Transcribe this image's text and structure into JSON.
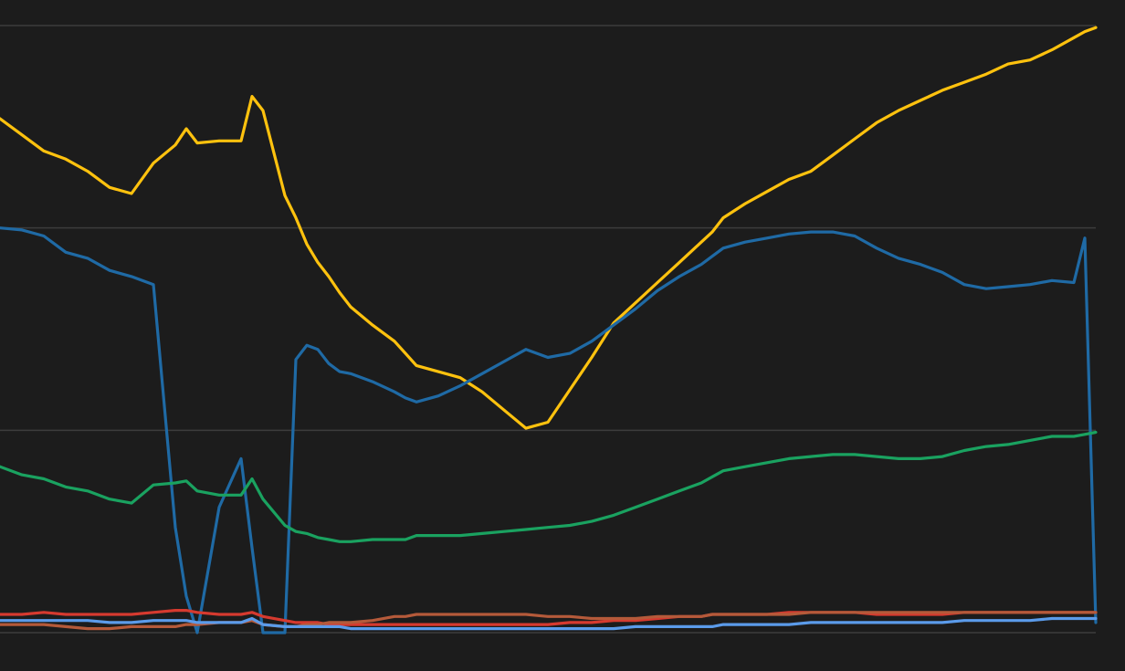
{
  "chart_data": {
    "type": "line",
    "title": "",
    "xlabel": "",
    "ylabel": "",
    "x_tick_labels": [],
    "ylim": [
      0,
      3
    ],
    "grid": true,
    "gridlines_y": [
      0,
      1,
      2,
      3
    ],
    "x": [
      0,
      2,
      4,
      6,
      8,
      10,
      12,
      14,
      16,
      17,
      18,
      20,
      22,
      23,
      24,
      26,
      27,
      28,
      29,
      30,
      31,
      32,
      34,
      36,
      37,
      38,
      40,
      42,
      44,
      46,
      48,
      50,
      52,
      54,
      56,
      58,
      60,
      62,
      64,
      65,
      66,
      68,
      70,
      72,
      74,
      76,
      78,
      80,
      82,
      84,
      86,
      88,
      90,
      92,
      94,
      96,
      98,
      99,
      100
    ],
    "series": [
      {
        "color": "#ffc20e",
        "values": [
          2.54,
          2.46,
          2.38,
          2.34,
          2.28,
          2.2,
          2.17,
          2.32,
          2.41,
          2.49,
          2.42,
          2.43,
          2.43,
          2.65,
          2.58,
          2.16,
          2.05,
          1.92,
          1.83,
          1.76,
          1.68,
          1.61,
          1.52,
          1.44,
          1.38,
          1.32,
          1.29,
          1.26,
          1.19,
          1.1,
          1.01,
          1.04,
          1.2,
          1.36,
          1.53,
          1.63,
          1.73,
          1.83,
          1.93,
          1.98,
          2.05,
          2.12,
          2.18,
          2.24,
          2.28,
          2.36,
          2.44,
          2.52,
          2.58,
          2.63,
          2.68,
          2.72,
          2.76,
          2.81,
          2.83,
          2.88,
          2.94,
          2.97,
          2.99
        ]
      },
      {
        "color": "#1f6aa5",
        "values": [
          2.0,
          1.99,
          1.96,
          1.88,
          1.85,
          1.79,
          1.76,
          1.72,
          0.52,
          0.18,
          0.0,
          0.62,
          0.86,
          0.42,
          0.0,
          0.0,
          1.35,
          1.42,
          1.4,
          1.33,
          1.29,
          1.28,
          1.24,
          1.19,
          1.16,
          1.14,
          1.17,
          1.22,
          1.28,
          1.34,
          1.4,
          1.36,
          1.38,
          1.44,
          1.52,
          1.6,
          1.69,
          1.76,
          1.82,
          1.86,
          1.9,
          1.93,
          1.95,
          1.97,
          1.98,
          1.98,
          1.96,
          1.9,
          1.85,
          1.82,
          1.78,
          1.72,
          1.7,
          1.71,
          1.72,
          1.74,
          1.73,
          1.95,
          0.05
        ]
      },
      {
        "color": "#1aa260",
        "values": [
          0.82,
          0.78,
          0.76,
          0.72,
          0.7,
          0.66,
          0.64,
          0.73,
          0.74,
          0.75,
          0.7,
          0.68,
          0.68,
          0.76,
          0.66,
          0.53,
          0.5,
          0.49,
          0.47,
          0.46,
          0.45,
          0.45,
          0.46,
          0.46,
          0.46,
          0.48,
          0.48,
          0.48,
          0.49,
          0.5,
          0.51,
          0.52,
          0.53,
          0.55,
          0.58,
          0.62,
          0.66,
          0.7,
          0.74,
          0.77,
          0.8,
          0.82,
          0.84,
          0.86,
          0.87,
          0.88,
          0.88,
          0.87,
          0.86,
          0.86,
          0.87,
          0.9,
          0.92,
          0.93,
          0.95,
          0.97,
          0.97,
          0.98,
          0.99
        ]
      },
      {
        "color": "#d63a2f",
        "values": [
          0.09,
          0.09,
          0.1,
          0.09,
          0.09,
          0.09,
          0.09,
          0.1,
          0.11,
          0.11,
          0.1,
          0.09,
          0.09,
          0.1,
          0.08,
          0.06,
          0.05,
          0.05,
          0.05,
          0.04,
          0.04,
          0.04,
          0.04,
          0.04,
          0.04,
          0.04,
          0.04,
          0.04,
          0.04,
          0.04,
          0.04,
          0.04,
          0.05,
          0.05,
          0.06,
          0.06,
          0.07,
          0.08,
          0.08,
          0.09,
          0.09,
          0.09,
          0.09,
          0.1,
          0.1,
          0.1,
          0.1,
          0.09,
          0.09,
          0.09,
          0.09,
          0.1,
          0.1,
          0.1,
          0.1,
          0.1,
          0.1,
          0.1,
          0.1
        ]
      },
      {
        "color": "#b55a3a",
        "values": [
          0.04,
          0.04,
          0.04,
          0.03,
          0.02,
          0.02,
          0.03,
          0.03,
          0.03,
          0.04,
          0.04,
          0.05,
          0.05,
          0.06,
          0.04,
          0.03,
          0.03,
          0.04,
          0.04,
          0.05,
          0.05,
          0.05,
          0.06,
          0.08,
          0.08,
          0.09,
          0.09,
          0.09,
          0.09,
          0.09,
          0.09,
          0.08,
          0.08,
          0.07,
          0.07,
          0.07,
          0.08,
          0.08,
          0.08,
          0.09,
          0.09,
          0.09,
          0.09,
          0.09,
          0.1,
          0.1,
          0.1,
          0.1,
          0.1,
          0.1,
          0.1,
          0.1,
          0.1,
          0.1,
          0.1,
          0.1,
          0.1,
          0.1,
          0.1
        ]
      },
      {
        "color": "#5b9bea",
        "values": [
          0.06,
          0.06,
          0.06,
          0.06,
          0.06,
          0.05,
          0.05,
          0.06,
          0.06,
          0.06,
          0.05,
          0.05,
          0.05,
          0.07,
          0.04,
          0.03,
          0.03,
          0.03,
          0.03,
          0.03,
          0.03,
          0.02,
          0.02,
          0.02,
          0.02,
          0.02,
          0.02,
          0.02,
          0.02,
          0.02,
          0.02,
          0.02,
          0.02,
          0.02,
          0.02,
          0.03,
          0.03,
          0.03,
          0.03,
          0.03,
          0.04,
          0.04,
          0.04,
          0.04,
          0.05,
          0.05,
          0.05,
          0.05,
          0.05,
          0.05,
          0.05,
          0.06,
          0.06,
          0.06,
          0.06,
          0.07,
          0.07,
          0.07,
          0.07
        ]
      }
    ]
  }
}
